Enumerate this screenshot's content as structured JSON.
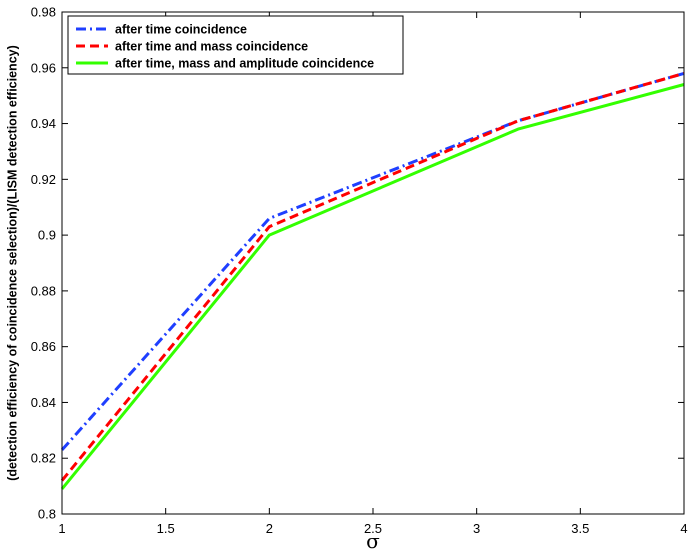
{
  "chart_data": {
    "type": "line",
    "xlabel": "σ",
    "ylabel": "(detection efficiency of coincidence selection)/(LISM detection efficiency)",
    "xlim": [
      1,
      4
    ],
    "ylim": [
      0.8,
      0.98
    ],
    "xticks": [
      1,
      1.5,
      2,
      2.5,
      3,
      3.5,
      4
    ],
    "xtick_labels": [
      "1",
      "1.5",
      "2",
      "2.5",
      "3",
      "3.5",
      "4"
    ],
    "yticks": [
      0.8,
      0.82,
      0.84,
      0.86,
      0.88,
      0.9,
      0.92,
      0.94,
      0.96,
      0.98
    ],
    "ytick_labels": [
      "0.8",
      "0.82",
      "0.84",
      "0.86",
      "0.88",
      "0.9",
      "0.92",
      "0.94",
      "0.96",
      "0.98"
    ],
    "grid": false,
    "legend_position": "top-left",
    "series": [
      {
        "name": "after time coincidence",
        "color": "#1f3fff",
        "style": "dashdot",
        "x": [
          1,
          2,
          3.2,
          4
        ],
        "y": [
          0.823,
          0.906,
          0.941,
          0.958
        ]
      },
      {
        "name": "after time and mass coincidence",
        "color": "#ff0000",
        "style": "dashed",
        "x": [
          1,
          2,
          3.2,
          4
        ],
        "y": [
          0.812,
          0.903,
          0.941,
          0.958
        ]
      },
      {
        "name": "after time, mass and amplitude coincidence",
        "color": "#33ff00",
        "style": "solid",
        "x": [
          1,
          2,
          3.2,
          4
        ],
        "y": [
          0.809,
          0.9,
          0.938,
          0.954
        ]
      }
    ]
  }
}
